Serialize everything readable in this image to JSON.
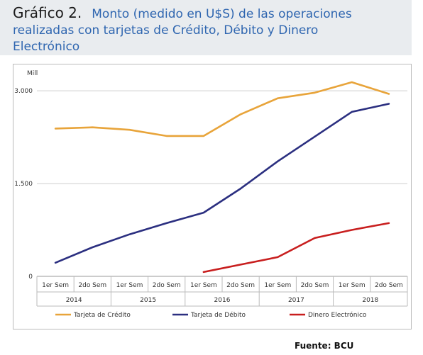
{
  "header": {
    "figure_label": "Gráfico 2.",
    "title_line1": "Monto (medido en U$S) de las operaciones",
    "title_line2": "realizadas con tarjetas de Crédito, Débito y Dinero",
    "title_line3": "Electrónico"
  },
  "source": "Fuente: BCU",
  "chart_data": {
    "type": "line",
    "ylabel": "Mill",
    "ylim": [
      0,
      3300
    ],
    "yticks": [
      0,
      1500,
      3000
    ],
    "ytick_labels": [
      "0",
      "1.500",
      "3.000"
    ],
    "grid": true,
    "legend_position": "bottom",
    "categories": [
      "1er Sem",
      "2do Sem",
      "1er Sem",
      "2do Sem",
      "1er Sem",
      "2do Sem",
      "1er Sem",
      "2do Sem",
      "1er Sem",
      "2do Sem"
    ],
    "groups": [
      "2014",
      "2015",
      "2016",
      "2017",
      "2018"
    ],
    "series": [
      {
        "name": "Tarjeta de Crédito",
        "color": "#e8a43a",
        "values": [
          2390,
          2410,
          2370,
          2270,
          2270,
          2620,
          2880,
          2970,
          3140,
          2950
        ]
      },
      {
        "name": "Tarjeta de Débito",
        "color": "#2b2f80",
        "values": [
          220,
          470,
          680,
          860,
          1030,
          1420,
          1860,
          2260,
          2660,
          2790
        ]
      },
      {
        "name": "Dinero Electrónico",
        "color": "#c81e1e",
        "values": [
          null,
          null,
          null,
          null,
          70,
          190,
          310,
          620,
          750,
          860
        ]
      }
    ]
  }
}
